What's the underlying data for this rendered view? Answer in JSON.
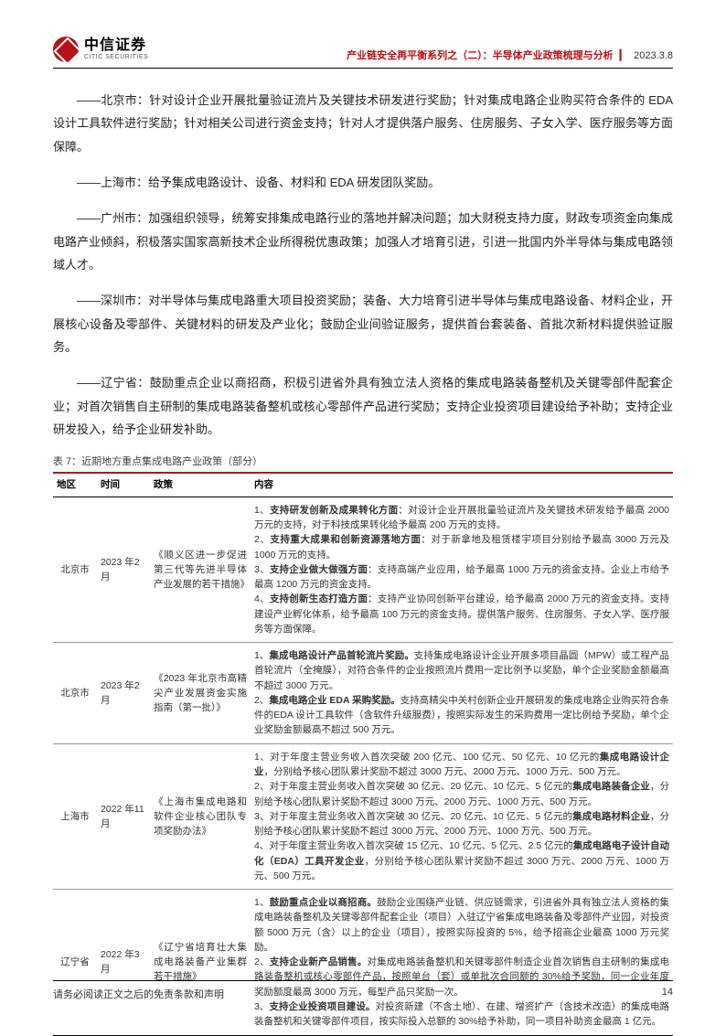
{
  "header": {
    "logo_cn": "中信证券",
    "logo_en": "CITIC SECURITIES",
    "title": "产业链安全再平衡系列之（二）：半导体产业政策梳理与分析",
    "date": "2023.3.8"
  },
  "paragraphs": {
    "p1": "——北京市：针对设计企业开展批量验证流片及关键技术研发进行奖励；针对集成电路企业购买符合条件的 EDA 设计工具软件进行奖励；针对相关公司进行资金支持；针对人才提供落户服务、住房服务、子女入学、医疗服务等方面保障。",
    "p2": "——上海市：给予集成电路设计、设备、材料和 EDA 研发团队奖励。",
    "p3": "——广州市：加强组织领导，统筹安排集成电路行业的落地并解决问题；加大财税支持力度，财政专项资金向集成电路产业倾斜，积极落实国家高新技术企业所得税优惠政策；加强人才培育引进，引进一批国内外半导体与集成电路领域人才。",
    "p4": "——深圳市：对半导体与集成电路重大项目投资奖励；装备、大力培育引进半导体与集成电路设备、材料企业，开展核心设备及零部件、关键材料的研发及产业化；鼓励企业间验证服务，提供首台套装备、首批次新材料提供验证服务。",
    "p5": "——辽宁省：鼓励重点企业以商招商，积极引进省外具有独立法人资格的集成电路装备整机及关键零部件配套企业；对首次销售自主研制的集成电路装备整机或核心零部件产品进行奖励；支持企业投资项目建设给予补助；支持企业研发投入，给予企业研发补助。"
  },
  "table": {
    "caption": "表 7：近期地方重点集成电路产业政策（部分）",
    "headers": {
      "region": "地区",
      "time": "时间",
      "policy": "政策",
      "content": "内容"
    },
    "rows": [
      {
        "region": "北京市",
        "time": "2023 年2 月",
        "policy": "《顺义区进一步促进第三代等先进半导体产业发展的若干措施》",
        "content": "1、<b>支持研发创新及成果转化方面</b>：对设计企业开展批量验证流片及关键技术研发给予最高 2000 万元的支持，对于科技成果转化给予最高 200 万元的支持。<br>2、<b>支持重大成果和创新资源落地方面</b>：对于新拿地及租赁楼宇项目分别给予最高 3000 万元及 1000 万元的支持。<br>3、<b>支持企业做大做强方面</b>：支持高端产业应用，给予最高 1000 万元的资金支持。企业上市给予最高 1200 万元的资金支持。<br>4、<b>支持创新生态打造方面</b>：支持产业协同创新平台建设，给予最高 2000 万元的资金支持。支持建设产业孵化体系，给予最高 100 万元的资金支持。提供落户服务、住房服务、子女入学、医疗服务等方面保障。"
      },
      {
        "region": "北京市",
        "time": "2023 年2 月",
        "policy": "《2023 年北京市高精尖产业发展资金实施指南（第一批）》",
        "content": "1、<b>集成电路设计产品首轮流片奖励。</b>支持集成电路设计企业开展多项目晶圆（MPW）或工程产品首轮流片（全掩膜），对符合条件的企业按照流片费用一定比例予以奖励，单个企业奖励金额最高不超过 3000 万元。<br>2、<b>集成电路企业 EDA 采购奖励。</b>支持高精尖中关村创新企业开展研发的集成电路企业购买符合条件的EDA 设计工具软件（含软件升级服费），按照实际发生的采购费用一定比例给予奖励，单个企业奖励金额最高不超过 500 万元。"
      },
      {
        "region": "上海市",
        "time": "2022 年11 月",
        "policy": "《上海市集成电路和软件企业核心团队专项奖励办法》",
        "content": "1、对于年度主营业务收入首次突破 200 亿元、100 亿元、50 亿元、10 亿元的<b>集成电路设计企业</b>，分别给予核心团队累计奖励不超过 3000 万元、2000 万元、1000 万元、500 万元。<br>2、对于年度主营业务收入首次突破 30 亿元、20 亿元、10 亿元、5 亿元的<b>集成电路装备企业</b>，分别给予核心团队累计奖励不超过 3000 万元、2000 万元、1000 万元、500 万元。<br>3、对于年度主营业务收入首次突破 30 亿元、20 亿元、10 亿元、5 亿元的<b>集成电路材料企业</b>，分别给予核心团队累计奖励不超过 3000 万元、2000 万元、1000 万元、500 万元。<br>4、对于年度主营业务收入首次突破 15 亿元、10 亿元、5 亿元、2.5 亿元的<b>集成电路电子设计自动化（EDA）工具开发企业</b>，分别给予核心团队累计奖励不超过 3000 万元、2000 万元、1000 万元、500 万元。"
      },
      {
        "region": "辽宁省",
        "time": "2022 年3 月",
        "policy": "《辽宁省培育壮大集成电路装备产业集群若干措施》",
        "content": "1、<b>鼓励重点企业以商招商。</b>鼓励企业围绕产业链、供应链需求，引进省外具有独立法人资格的集成电路装备整机及关键零部件配套企业（项目）入驻辽宁省集成电路装备及零部件产业园，对投资额 5000 万元（含）以上的企业（项目），按照实际投资的 5%，给予招商企业最高 1000 万元奖励。<br>2、<b>支持企业新产品销售。</b>对集成电路装备整机和关键零部件制造企业首次销售自主研制的集成电路装备整机或核心零部件产品，按照单台（套）或单批次合同额的 30%给予奖励，同一企业年度奖励额度最高 3000 万元，每型产品只奖励一次。<br>3、<b>支持企业投资项目建设。</b>对投资新建（不含土地）、在建、增资扩产（含技术改造）的集成电路装备整机和关键零部件项目，按实际投入总额的 30%给予补助，同一项目补助资金最高 1 亿元。"
      }
    ]
  },
  "footer": {
    "disclaimer": "请务必阅读正文之后的免责条款和声明",
    "page": "14"
  }
}
